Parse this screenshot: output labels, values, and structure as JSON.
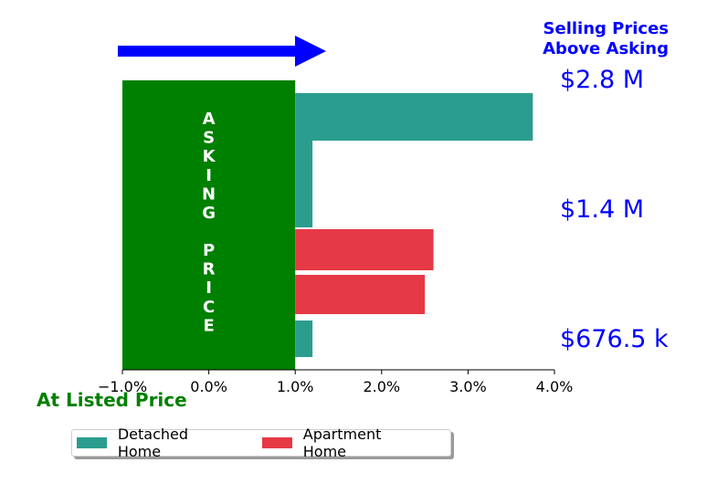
{
  "chart_data": {
    "type": "bar",
    "orientation": "horizontal",
    "x_ticks": [
      "−1.0%",
      "0.0%",
      "1.0%",
      "2.0%",
      "3.0%",
      "4.0%"
    ],
    "xlim": [
      -1.0,
      4.0
    ],
    "bars": [
      {
        "category": "Detached Home",
        "price_band": "$676.5 k",
        "value": 1.2
      },
      {
        "category": "Apartment Home",
        "price_band": "$676.5 k",
        "value": 2.5
      },
      {
        "category": "Apartment Home",
        "price_band": "$1.4 M",
        "value": 2.6
      },
      {
        "category": "Detached Home",
        "price_band": "$1.4 M",
        "value": 1.2
      },
      {
        "category": "Detached Home",
        "price_band": "$2.8 M",
        "value": 3.75
      }
    ],
    "series": [
      {
        "name": "Detached Home",
        "color": "#2a9d8f"
      },
      {
        "name": "Apartment Home",
        "color": "#e63946"
      }
    ],
    "asking_price_block": {
      "text": "ASKING PRICE",
      "letters_top": [
        "A",
        "S",
        "K",
        "I",
        "N",
        "G"
      ],
      "letters_bottom": [
        "P",
        "R",
        "I",
        "C",
        "E"
      ],
      "from": -1.0,
      "to": 1.0,
      "color": "#008000"
    },
    "arrow_color": "#0000ff",
    "annotation_title": [
      "Selling Prices",
      "Above Asking"
    ],
    "price_labels": [
      "$2.8 M",
      "$1.4 M",
      "$676.5 k"
    ],
    "annotation_color": "#0000ff",
    "bottom_left_label": "At Listed Price",
    "bottom_left_color": "#008000",
    "legend": {
      "placement": "bottom-left",
      "items": [
        "Detached Home",
        "Apartment Home"
      ]
    }
  }
}
